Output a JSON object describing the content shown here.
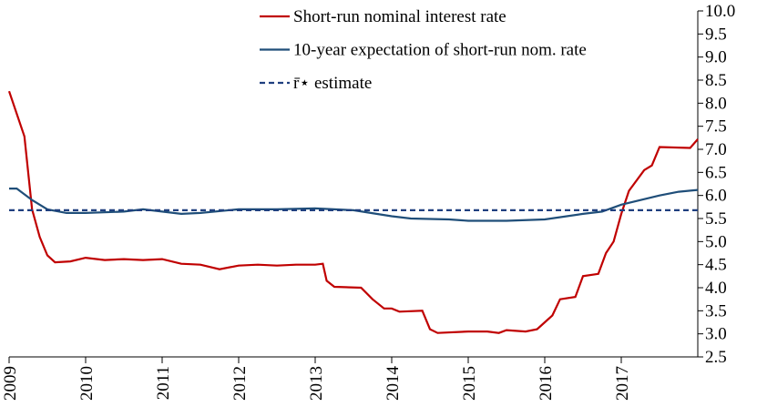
{
  "chart_data": {
    "type": "line",
    "xlim": [
      2009,
      2018
    ],
    "xticks": [
      2009,
      2010,
      2011,
      2012,
      2013,
      2014,
      2015,
      2016,
      2017
    ],
    "ylim": [
      2.5,
      10
    ],
    "yticks": [
      2.5,
      {
        "value": 3,
        "label": "3.0"
      },
      3.5,
      {
        "value": 4,
        "label": "4.0"
      },
      4.5,
      {
        "value": 5,
        "label": "5.0"
      },
      5.5,
      {
        "value": 6,
        "label": "6.0"
      },
      6.5,
      {
        "value": 7,
        "label": "7.0"
      },
      7.5,
      {
        "value": 8,
        "label": "8.0"
      },
      8.5,
      {
        "value": 9,
        "label": "9.0"
      },
      9.5,
      {
        "value": 10,
        "label": "10.0"
      }
    ],
    "y_axis_side": "right",
    "legend": "top",
    "series": [
      {
        "name": "Short-run nominal interest rate",
        "color": "#c00000",
        "style": "solid",
        "x": [
          2009,
          2009.1,
          2009.2,
          2009.3,
          2009.4,
          2009.5,
          2009.6,
          2009.8,
          2010,
          2010.25,
          2010.5,
          2010.75,
          2011,
          2011.25,
          2011.5,
          2011.75,
          2012,
          2012.25,
          2012.5,
          2012.75,
          2013,
          2013.1,
          2013.15,
          2013.25,
          2013.6,
          2013.75,
          2013.9,
          2014,
          2014.1,
          2014.4,
          2014.5,
          2014.6,
          2015,
          2015.25,
          2015.4,
          2015.5,
          2015.75,
          2015.9,
          2016,
          2016.1,
          2016.2,
          2016.4,
          2016.5,
          2016.7,
          2016.8,
          2016.9,
          2017,
          2017.1,
          2017.3,
          2017.4,
          2017.5,
          2017.9,
          2018
        ],
        "values": [
          8.26,
          7.77,
          7.28,
          5.7,
          5.1,
          4.7,
          4.55,
          4.57,
          4.65,
          4.6,
          4.62,
          4.6,
          4.62,
          4.52,
          4.5,
          4.4,
          4.48,
          4.5,
          4.48,
          4.5,
          4.5,
          4.52,
          4.15,
          4.02,
          4.0,
          3.75,
          3.55,
          3.55,
          3.48,
          3.5,
          3.1,
          3.02,
          3.05,
          3.05,
          3.02,
          3.08,
          3.05,
          3.1,
          3.25,
          3.4,
          3.75,
          3.8,
          4.25,
          4.3,
          4.75,
          5.0,
          5.6,
          6.1,
          6.55,
          6.65,
          7.05,
          7.03,
          7.22
        ]
      },
      {
        "name": "10-year expectation  of  short-run nom. rate",
        "color": "#1f4e79",
        "style": "solid",
        "x": [
          2009,
          2009.1,
          2009.3,
          2009.5,
          2009.75,
          2010,
          2010.5,
          2010.75,
          2011,
          2011.25,
          2011.5,
          2012,
          2012.5,
          2013,
          2013.5,
          2014,
          2014.25,
          2014.75,
          2015,
          2015.5,
          2016,
          2016.5,
          2016.75,
          2017,
          2017.5,
          2017.75,
          2018
        ],
        "values": [
          6.15,
          6.15,
          5.9,
          5.7,
          5.62,
          5.62,
          5.65,
          5.7,
          5.65,
          5.6,
          5.62,
          5.7,
          5.7,
          5.72,
          5.68,
          5.55,
          5.5,
          5.48,
          5.45,
          5.45,
          5.48,
          5.6,
          5.65,
          5.8,
          6.0,
          6.08,
          6.12
        ]
      },
      {
        "name": "r̄⋆ estimate",
        "color": "#1f3f7f",
        "style": "dashed",
        "x": [
          2009,
          2018
        ],
        "values": [
          5.68,
          5.68
        ]
      }
    ]
  }
}
